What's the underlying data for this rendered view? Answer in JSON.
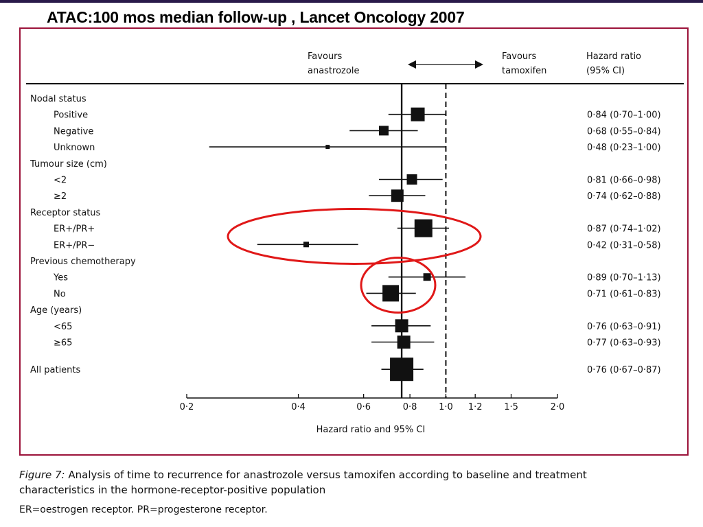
{
  "slide_title": "ATAC:100 mos median follow-up , Lancet Oncology 2007",
  "header": {
    "favours_left": [
      "Favours",
      "anastrozole"
    ],
    "favours_right": [
      "Favours",
      "tamoxifen"
    ],
    "hr_header": [
      "Hazard ratio",
      "(95% CI)"
    ]
  },
  "caption": {
    "figure_label": "Figure 7:",
    "line1": " Analysis of time to recurrence for anastrozole versus tamoxifen according to baseline and treatment",
    "line2": "characteristics in the hormone-receptor-positive population",
    "line3": "ER=oestrogen receptor. PR=progesterone receptor."
  },
  "colors": {
    "frame": "#9b1239",
    "highlight": "#e01818",
    "ink": "#111111"
  },
  "chart_data": {
    "type": "forest",
    "x_scale": "log",
    "xlim": [
      0.2,
      2.0
    ],
    "xlabel": "Hazard ratio and 95% CI",
    "x_ticks": [
      0.2,
      0.4,
      0.6,
      0.8,
      1.0,
      1.2,
      1.5,
      2.0
    ],
    "x_tick_labels": [
      "0·2",
      "0·4",
      "0·6",
      "0·8",
      "1·0",
      "1·2",
      "1·5",
      "2·0"
    ],
    "reference_line_solid": 0.76,
    "reference_line_dashed": 1.0,
    "rows": [
      {
        "label": "Nodal status",
        "header": true
      },
      {
        "label": "Positive",
        "hr": 0.84,
        "lo": 0.7,
        "hi": 1.0,
        "hr_text": "0·84 (0·70–1·00)",
        "box": 20
      },
      {
        "label": "Negative",
        "hr": 0.68,
        "lo": 0.55,
        "hi": 0.84,
        "hr_text": "0·68 (0·55–0·84)",
        "box": 14
      },
      {
        "label": "Unknown",
        "hr": 0.48,
        "lo": 0.23,
        "hi": 1.0,
        "hr_text": "0·48 (0·23–1·00)",
        "box": 6
      },
      {
        "label": "Tumour size (cm)",
        "header": true
      },
      {
        "label": "<2",
        "hr": 0.81,
        "lo": 0.66,
        "hi": 0.98,
        "hr_text": "0·81 (0·66–0·98)",
        "box": 15
      },
      {
        "label": "≥2",
        "hr": 0.74,
        "lo": 0.62,
        "hi": 0.88,
        "hr_text": "0·74 (0·62–0·88)",
        "box": 18
      },
      {
        "label": "Receptor status",
        "header": true
      },
      {
        "label": "ER+/PR+",
        "hr": 0.87,
        "lo": 0.74,
        "hi": 1.02,
        "hr_text": "0·87 (0·74–1·02)",
        "box": 26
      },
      {
        "label": "ER+/PR−",
        "hr": 0.42,
        "lo": 0.31,
        "hi": 0.58,
        "hr_text": "0·42 (0·31–0·58)",
        "box": 8
      },
      {
        "label": "Previous chemotherapy",
        "header": true
      },
      {
        "label": "Yes",
        "hr": 0.89,
        "lo": 0.7,
        "hi": 1.13,
        "hr_text": "0·89 (0·70–1·13)",
        "box": 11
      },
      {
        "label": "No",
        "hr": 0.71,
        "lo": 0.61,
        "hi": 0.83,
        "hr_text": "0·71 (0·61–0·83)",
        "box": 24
      },
      {
        "label": "Age (years)",
        "header": true
      },
      {
        "label": "<65",
        "hr": 0.76,
        "lo": 0.63,
        "hi": 0.91,
        "hr_text": "0·76 (0·63–0·91)",
        "box": 19
      },
      {
        "label": "≥65",
        "hr": 0.77,
        "lo": 0.63,
        "hi": 0.93,
        "hr_text": "0·77 (0·63–0·93)",
        "box": 19
      },
      {
        "label": "All patients",
        "hr": 0.76,
        "lo": 0.67,
        "hi": 0.87,
        "hr_text": "0·76 (0·67–0·87)",
        "box": 34,
        "gap_before": true
      }
    ],
    "highlights": [
      {
        "shape": "ellipse",
        "rows": [
          "ER+/PR+",
          "ER+/PR−"
        ]
      },
      {
        "shape": "ellipse",
        "rows": [
          "Yes",
          "No"
        ]
      }
    ]
  }
}
